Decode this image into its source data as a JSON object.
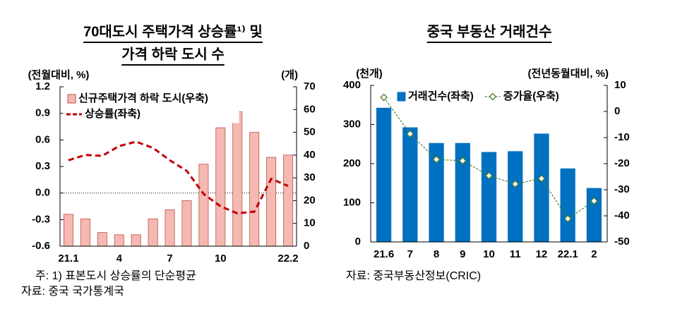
{
  "chart_data": [
    {
      "type": "combo",
      "title": [
        "70대도시 주택가격 상승률¹⁾ 및",
        "가격 하락 도시 수"
      ],
      "ylabel": "(전월대비, %)",
      "y2label": "(개)",
      "categories": [
        "21.1",
        null,
        null,
        "4",
        null,
        null,
        "7",
        null,
        null,
        "10",
        null,
        null,
        null,
        "22.2"
      ],
      "series": [
        {
          "name": "신규주택가격 하락 도시(우축)",
          "type": "bar",
          "axis": "y2",
          "color": "#f4b9b2",
          "edge": "#c0504d",
          "values": [
            14,
            12,
            6,
            5,
            5,
            12,
            16,
            20,
            36,
            52,
            59,
            50,
            39,
            40
          ]
        },
        {
          "name": "상승률(좌축)",
          "type": "line",
          "color": "#c00000",
          "dashed": true,
          "values": [
            0.37,
            0.43,
            0.42,
            0.53,
            0.58,
            0.51,
            0.37,
            0.25,
            -0.01,
            -0.15,
            -0.23,
            -0.21,
            0.16,
            0.08
          ]
        }
      ],
      "ylim": [
        -0.6,
        1.2
      ],
      "yticks": [
        -0.6,
        -0.3,
        {
          "value": 0,
          "label": "0.0"
        },
        0.3,
        0.6,
        0.9,
        1.2
      ],
      "y2lim": [
        0,
        70
      ],
      "y2ticks": [
        0,
        10,
        20,
        30,
        40,
        50,
        60,
        70
      ],
      "zero_line": true,
      "legend": "upper left",
      "legend_box": true,
      "notes": [
        "주: 1) 표본도시 상승률의 단순평균",
        "자료: 중국 국가통계국"
      ]
    },
    {
      "type": "combo",
      "title": [
        "중국 부동산 거래건수"
      ],
      "ylabel": "(천개)",
      "y2label": "(전년동월대비, %)",
      "categories": [
        "21.6",
        "7",
        "8",
        "9",
        "10",
        "11",
        "12",
        "22.1",
        "2"
      ],
      "series": [
        {
          "name": "거래건수(좌축)",
          "type": "bar",
          "color": "#0070c0",
          "edge": "#0070c0",
          "values": [
            342,
            292,
            252,
            252,
            229,
            231,
            276,
            187,
            137
          ]
        },
        {
          "name": "증가율(우축)",
          "type": "line",
          "axis": "y2",
          "color": "#4f7f2f",
          "dashed": true,
          "marker": "diamond",
          "values": [
            5.4,
            -8.6,
            -18.4,
            -18.9,
            -24.6,
            -27.8,
            -25.7,
            -41.1,
            -34.3
          ]
        }
      ],
      "ylim": [
        0,
        400
      ],
      "yticks": [
        0,
        100,
        200,
        300,
        400
      ],
      "y2lim": [
        -50,
        10
      ],
      "y2ticks": [
        -50,
        -40,
        -30,
        -20,
        -10,
        0,
        10
      ],
      "zero_line": false,
      "legend": "upper center",
      "legend_box": false,
      "notes": [
        "자료: 중국부동산정보(CRIC)"
      ]
    }
  ]
}
